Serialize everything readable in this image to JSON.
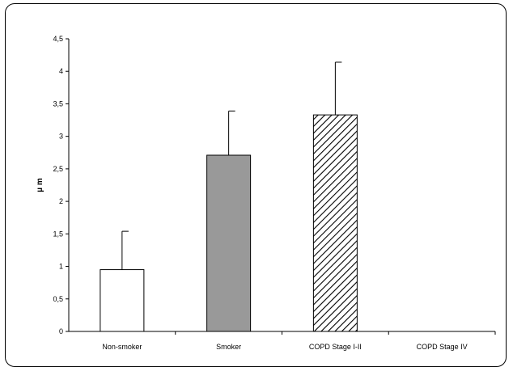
{
  "chart_data": {
    "type": "bar",
    "categories": [
      "Non-smoker",
      "Smoker",
      "COPD Stage I-II",
      "COPD Stage IV"
    ],
    "values": [
      0.95,
      2.71,
      3.33,
      null
    ],
    "errors": [
      0.59,
      0.68,
      0.81,
      null
    ],
    "fills": [
      "white",
      "gray",
      "hatched",
      "none"
    ],
    "ylabel": "µ m",
    "ylim": [
      0,
      4.5
    ],
    "yticks": [
      "0",
      "0,5",
      "1",
      "1,5",
      "2",
      "2,5",
      "3",
      "3,5",
      "4",
      "4,5"
    ],
    "ytick_values": [
      0,
      0.5,
      1,
      1.5,
      2,
      2.5,
      3,
      3.5,
      4,
      4.5
    ],
    "grid": false,
    "legend": "none",
    "colors": {
      "gray_bar": "#999999",
      "axis": "#000000"
    }
  }
}
